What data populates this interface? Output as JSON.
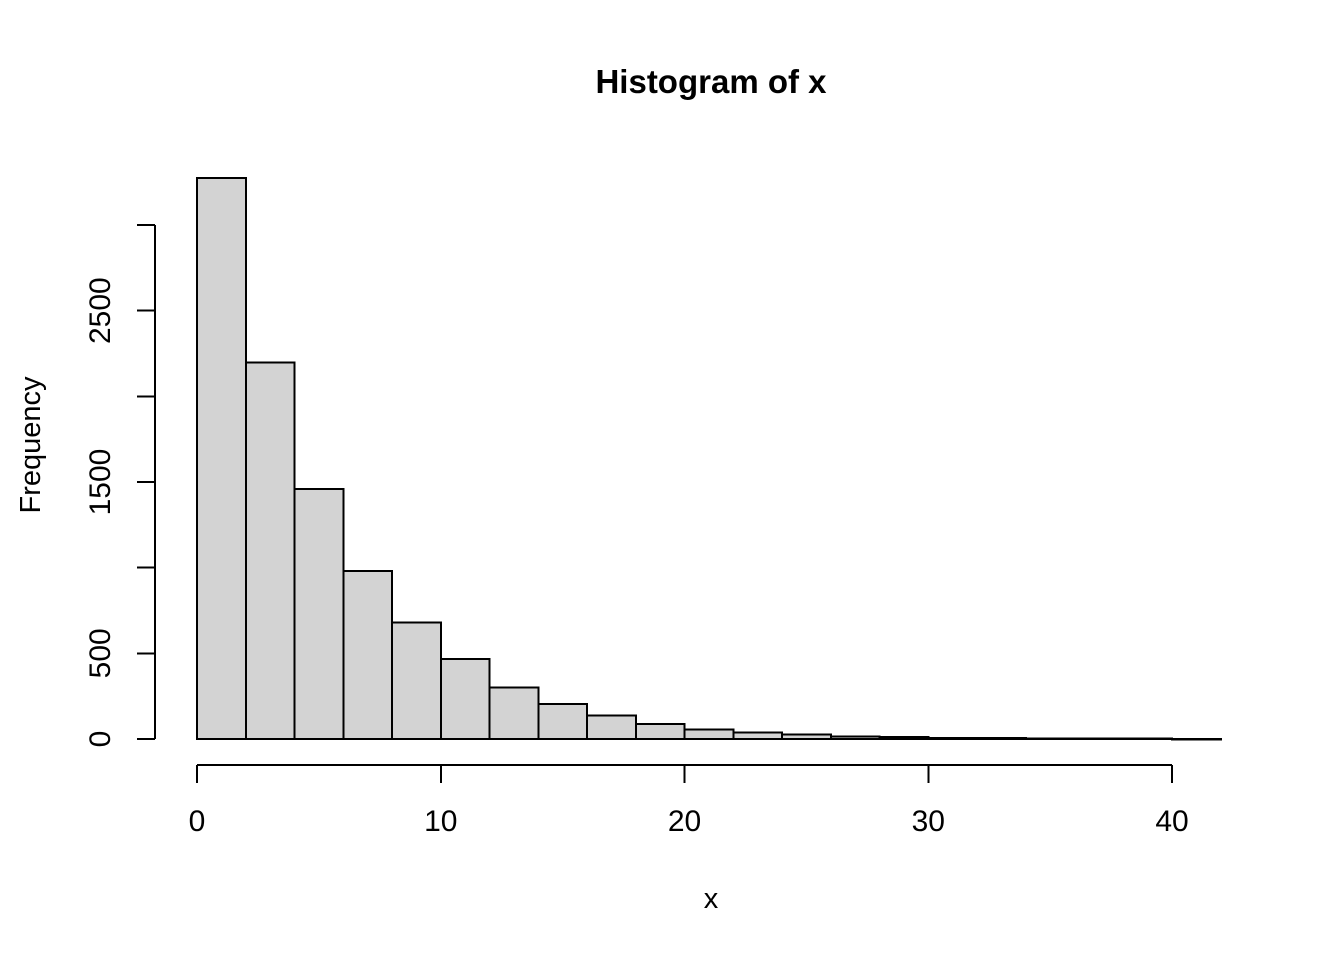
{
  "chart_data": {
    "type": "bar",
    "subtype": "histogram",
    "title": "Histogram of x",
    "xlabel": "x",
    "ylabel": "Frequency",
    "breaks": [
      0,
      2,
      4,
      6,
      8,
      10,
      12,
      14,
      16,
      18,
      20,
      22,
      24,
      26,
      28,
      30,
      32,
      34,
      36,
      38,
      40,
      42
    ],
    "frequencies": [
      3274,
      2198,
      1459,
      982,
      681,
      467,
      302,
      204,
      136,
      88,
      54,
      37,
      25,
      16,
      11,
      7,
      5,
      3,
      2,
      2,
      1
    ],
    "xlim": [
      0,
      42
    ],
    "ylim": [
      0,
      3000
    ],
    "x_ticks": [
      {
        "value": 0,
        "label": "0"
      },
      {
        "value": 10,
        "label": "10"
      },
      {
        "value": 20,
        "label": "20"
      },
      {
        "value": 30,
        "label": "30"
      },
      {
        "value": 40,
        "label": "40"
      }
    ],
    "y_ticks": [
      {
        "value": 0,
        "label": "0"
      },
      {
        "value": 500,
        "label": "500"
      },
      {
        "value": 1000,
        "label": ""
      },
      {
        "value": 1500,
        "label": "1500"
      },
      {
        "value": 2000,
        "label": ""
      },
      {
        "value": 2500,
        "label": "2500"
      },
      {
        "value": 3000,
        "label": ""
      }
    ],
    "grid": false,
    "legend": false,
    "colors": {
      "background": "#ffffff",
      "bar_fill": "#d3d3d3",
      "bar_stroke": "#000000",
      "axis": "#000000",
      "text": "#000000"
    }
  }
}
